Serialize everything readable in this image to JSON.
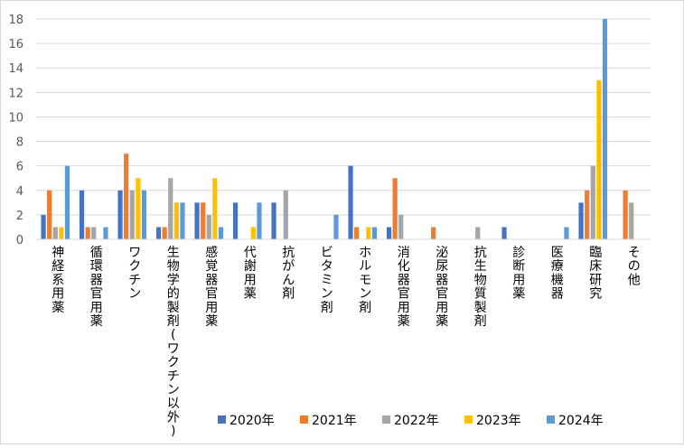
{
  "chart_data": {
    "type": "bar",
    "title": "",
    "xlabel": "",
    "ylabel": "",
    "ylim": [
      0,
      18
    ],
    "yticks": [
      0,
      2,
      4,
      6,
      8,
      10,
      12,
      14,
      16,
      18
    ],
    "grid": true,
    "legend_position": "bottom",
    "categories": [
      "神経系用薬",
      "循環器官用薬",
      "ワクチン",
      "生物学的製剤(ワクチン以外)",
      "感覚器官用薬",
      "代謝用薬",
      "抗がん剤",
      "ビタミン剤",
      "ホルモン剤",
      "消化器官用薬",
      "泌尿器官用薬",
      "抗生物質製剤",
      "診断用薬",
      "医療機器",
      "臨床研究",
      "その他"
    ],
    "series": [
      {
        "name": "2020年",
        "color": "#4472C4",
        "values": [
          2,
          4,
          4,
          1,
          3,
          3,
          3,
          0,
          6,
          1,
          0,
          0,
          1,
          0,
          3,
          0
        ]
      },
      {
        "name": "2021年",
        "color": "#ED7D31",
        "values": [
          4,
          1,
          7,
          1,
          3,
          0,
          0,
          0,
          1,
          5,
          1,
          0,
          0,
          0,
          4,
          4
        ]
      },
      {
        "name": "2022年",
        "color": "#A5A5A5",
        "values": [
          1,
          1,
          4,
          5,
          2,
          0,
          4,
          0,
          0,
          2,
          0,
          1,
          0,
          0,
          6,
          3
        ]
      },
      {
        "name": "2023年",
        "color": "#FFC000",
        "values": [
          1,
          0,
          5,
          3,
          5,
          1,
          0,
          0,
          1,
          0,
          0,
          0,
          0,
          0,
          13,
          0
        ]
      },
      {
        "name": "2024年",
        "color": "#5B9BD5",
        "values": [
          6,
          1,
          4,
          3,
          1,
          3,
          0,
          2,
          1,
          0,
          0,
          0,
          0,
          1,
          18,
          0
        ]
      }
    ]
  }
}
